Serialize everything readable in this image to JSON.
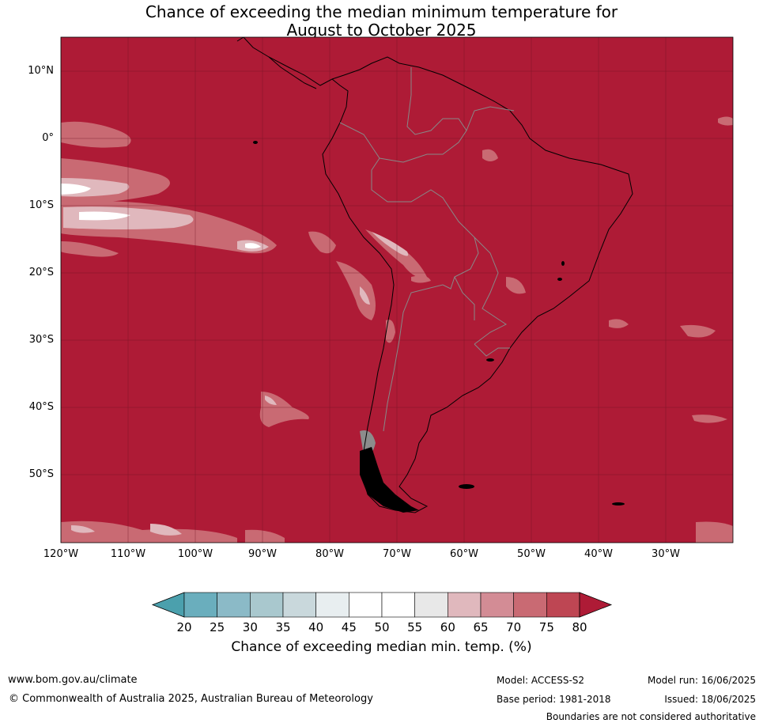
{
  "title": {
    "line1": "Chance of exceeding the median minimum temperature for",
    "line2": "August to October 2025"
  },
  "map": {
    "latitude_labels": [
      "10°N",
      "0°",
      "10°S",
      "20°S",
      "30°S",
      "40°S",
      "50°S"
    ],
    "longitude_labels": [
      "120°W",
      "110°W",
      "100°W",
      "90°W",
      "80°W",
      "70°W",
      "60°W",
      "50°W",
      "40°W",
      "30°W"
    ]
  },
  "colorbar": {
    "ticks": [
      "20",
      "25",
      "30",
      "35",
      "40",
      "45",
      "50",
      "55",
      "60",
      "65",
      "70",
      "75",
      "80"
    ],
    "colors": [
      "#4ba0ad",
      "#6aaebd",
      "#8bbac7",
      "#a9c8ce",
      "#c9d8dc",
      "#e8eef0",
      "#ffffff",
      "#ffffff",
      "#e8e8e8",
      "#e0b8bd",
      "#d38c95",
      "#c96a73",
      "#be4653",
      "#ae1b36"
    ],
    "label": "Chance of exceeding median min. temp. (%)"
  },
  "footer": {
    "website": "www.bom.gov.au/climate",
    "copyright": "© Commonwealth of Australia 2025, Australian Bureau of Meteorology",
    "model": "Model: ACCESS-S2",
    "base_period": "Base period: 1981-2018",
    "model_run": "Model run: 16/06/2025",
    "issued": "Issued: 18/06/2025",
    "disclaimer": "Boundaries are not considered authoritative"
  }
}
